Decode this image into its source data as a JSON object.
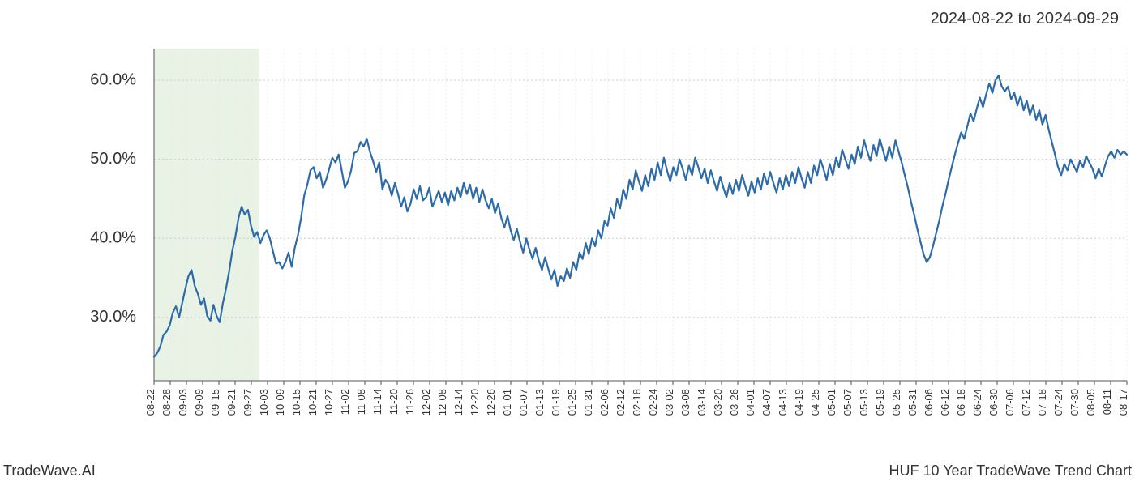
{
  "header": {
    "date_range": "2024-08-22 to 2024-09-29"
  },
  "footer": {
    "brand": "TradeWave.AI",
    "title": "HUF 10 Year TradeWave Trend Chart"
  },
  "chart": {
    "type": "line",
    "line_color": "#2d6ba8",
    "line_width": 2.2,
    "background_color": "#ffffff",
    "highlight_fill": "#d8e9d4",
    "highlight_opacity": 0.6,
    "grid_color_major": "#cccccc",
    "grid_color_minor": "#e8e8e8",
    "grid_dash": "2,3",
    "axis_color": "#555555",
    "ylim": [
      22,
      64
    ],
    "yticks": [
      30,
      40,
      50,
      60
    ],
    "ytick_labels": [
      "30.0%",
      "40.0%",
      "50.0%",
      "60.0%"
    ],
    "ytick_fontsize": 20,
    "xtick_labels": [
      "08-22",
      "08-28",
      "09-03",
      "09-09",
      "09-15",
      "09-21",
      "09-27",
      "10-03",
      "10-09",
      "10-15",
      "10-21",
      "10-27",
      "11-02",
      "11-08",
      "11-14",
      "11-20",
      "11-26",
      "12-02",
      "12-08",
      "12-14",
      "12-20",
      "12-26",
      "01-01",
      "01-07",
      "01-13",
      "01-19",
      "01-25",
      "01-31",
      "02-06",
      "02-12",
      "02-18",
      "02-24",
      "03-02",
      "03-08",
      "03-14",
      "03-20",
      "03-26",
      "04-01",
      "04-07",
      "04-13",
      "04-19",
      "04-25",
      "05-01",
      "05-07",
      "05-13",
      "05-19",
      "05-25",
      "05-31",
      "06-06",
      "06-12",
      "06-18",
      "06-24",
      "06-30",
      "07-06",
      "07-12",
      "07-18",
      "07-24",
      "07-30",
      "08-05",
      "08-11",
      "08-17"
    ],
    "xtick_fontsize": 13,
    "highlight_range_indices": [
      0,
      6
    ],
    "series": [
      25.0,
      25.5,
      26.3,
      27.8,
      28.2,
      29.0,
      30.6,
      31.4,
      30.0,
      31.8,
      33.6,
      35.2,
      36.0,
      34.0,
      33.0,
      31.6,
      32.4,
      30.2,
      29.6,
      31.6,
      30.2,
      29.4,
      31.8,
      33.6,
      35.8,
      38.4,
      40.2,
      42.6,
      44.0,
      43.0,
      43.6,
      41.6,
      40.2,
      40.8,
      39.4,
      40.4,
      41.0,
      40.0,
      38.4,
      36.8,
      37.0,
      36.2,
      37.0,
      38.2,
      36.4,
      38.8,
      40.4,
      42.6,
      45.4,
      46.8,
      48.6,
      49.0,
      47.6,
      48.4,
      46.4,
      47.4,
      48.8,
      50.2,
      49.6,
      50.6,
      48.6,
      46.4,
      47.2,
      48.6,
      50.8,
      51.0,
      52.2,
      51.6,
      52.6,
      51.0,
      49.8,
      48.4,
      49.6,
      46.2,
      47.4,
      46.8,
      45.4,
      47.0,
      45.6,
      44.0,
      45.2,
      43.4,
      44.4,
      46.2,
      45.0,
      46.6,
      44.8,
      45.2,
      46.4,
      44.0,
      45.0,
      46.0,
      44.6,
      45.8,
      44.2,
      46.0,
      44.8,
      46.4,
      45.2,
      47.0,
      45.6,
      46.8,
      45.0,
      46.4,
      44.6,
      46.2,
      44.8,
      43.8,
      45.0,
      43.2,
      44.4,
      42.6,
      41.4,
      42.8,
      41.0,
      39.8,
      41.2,
      39.6,
      38.2,
      40.0,
      38.6,
      37.4,
      38.8,
      37.2,
      36.0,
      37.6,
      36.2,
      34.8,
      36.0,
      34.0,
      35.2,
      34.6,
      36.2,
      35.0,
      37.0,
      36.0,
      38.2,
      37.4,
      39.4,
      38.0,
      40.0,
      39.0,
      41.0,
      40.0,
      42.2,
      41.6,
      43.8,
      42.6,
      45.0,
      43.8,
      46.2,
      45.0,
      47.4,
      46.2,
      48.6,
      47.2,
      46.0,
      48.0,
      46.6,
      48.8,
      47.4,
      49.6,
      48.0,
      50.2,
      48.6,
      47.2,
      49.0,
      48.0,
      50.0,
      48.8,
      47.4,
      49.2,
      48.0,
      50.2,
      49.0,
      47.6,
      48.8,
      47.0,
      48.6,
      47.2,
      46.0,
      47.8,
      46.4,
      45.2,
      47.0,
      45.6,
      47.4,
      46.0,
      48.0,
      46.6,
      45.4,
      47.2,
      45.8,
      47.6,
      46.2,
      48.2,
      46.8,
      48.4,
      47.0,
      45.8,
      47.6,
      46.2,
      48.0,
      46.6,
      48.4,
      47.0,
      49.0,
      47.6,
      46.4,
      48.4,
      47.0,
      49.2,
      48.0,
      50.0,
      48.8,
      47.4,
      49.4,
      48.0,
      50.2,
      49.0,
      51.2,
      50.0,
      48.8,
      50.6,
      49.4,
      51.6,
      50.2,
      52.4,
      51.0,
      49.8,
      51.8,
      50.4,
      52.6,
      51.2,
      49.8,
      51.6,
      50.2,
      52.4,
      51.0,
      49.6,
      48.0,
      46.4,
      44.6,
      43.0,
      41.2,
      39.6,
      38.0,
      37.0,
      37.6,
      39.0,
      40.6,
      42.2,
      44.0,
      45.6,
      47.4,
      49.0,
      50.6,
      52.0,
      53.4,
      52.6,
      54.2,
      55.8,
      54.8,
      56.4,
      57.8,
      56.6,
      58.2,
      59.6,
      58.4,
      60.0,
      60.6,
      59.2,
      58.6,
      59.2,
      57.6,
      58.4,
      56.8,
      58.0,
      56.2,
      57.4,
      55.6,
      56.8,
      55.0,
      56.2,
      54.4,
      55.6,
      53.8,
      52.2,
      50.6,
      49.0,
      48.0,
      49.4,
      48.6,
      50.0,
      49.2,
      48.4,
      49.8,
      49.0,
      50.4,
      49.6,
      48.8,
      47.6,
      48.8,
      47.8,
      49.2,
      50.4,
      51.0,
      50.2,
      51.2,
      50.6,
      51.0,
      50.6
    ]
  }
}
